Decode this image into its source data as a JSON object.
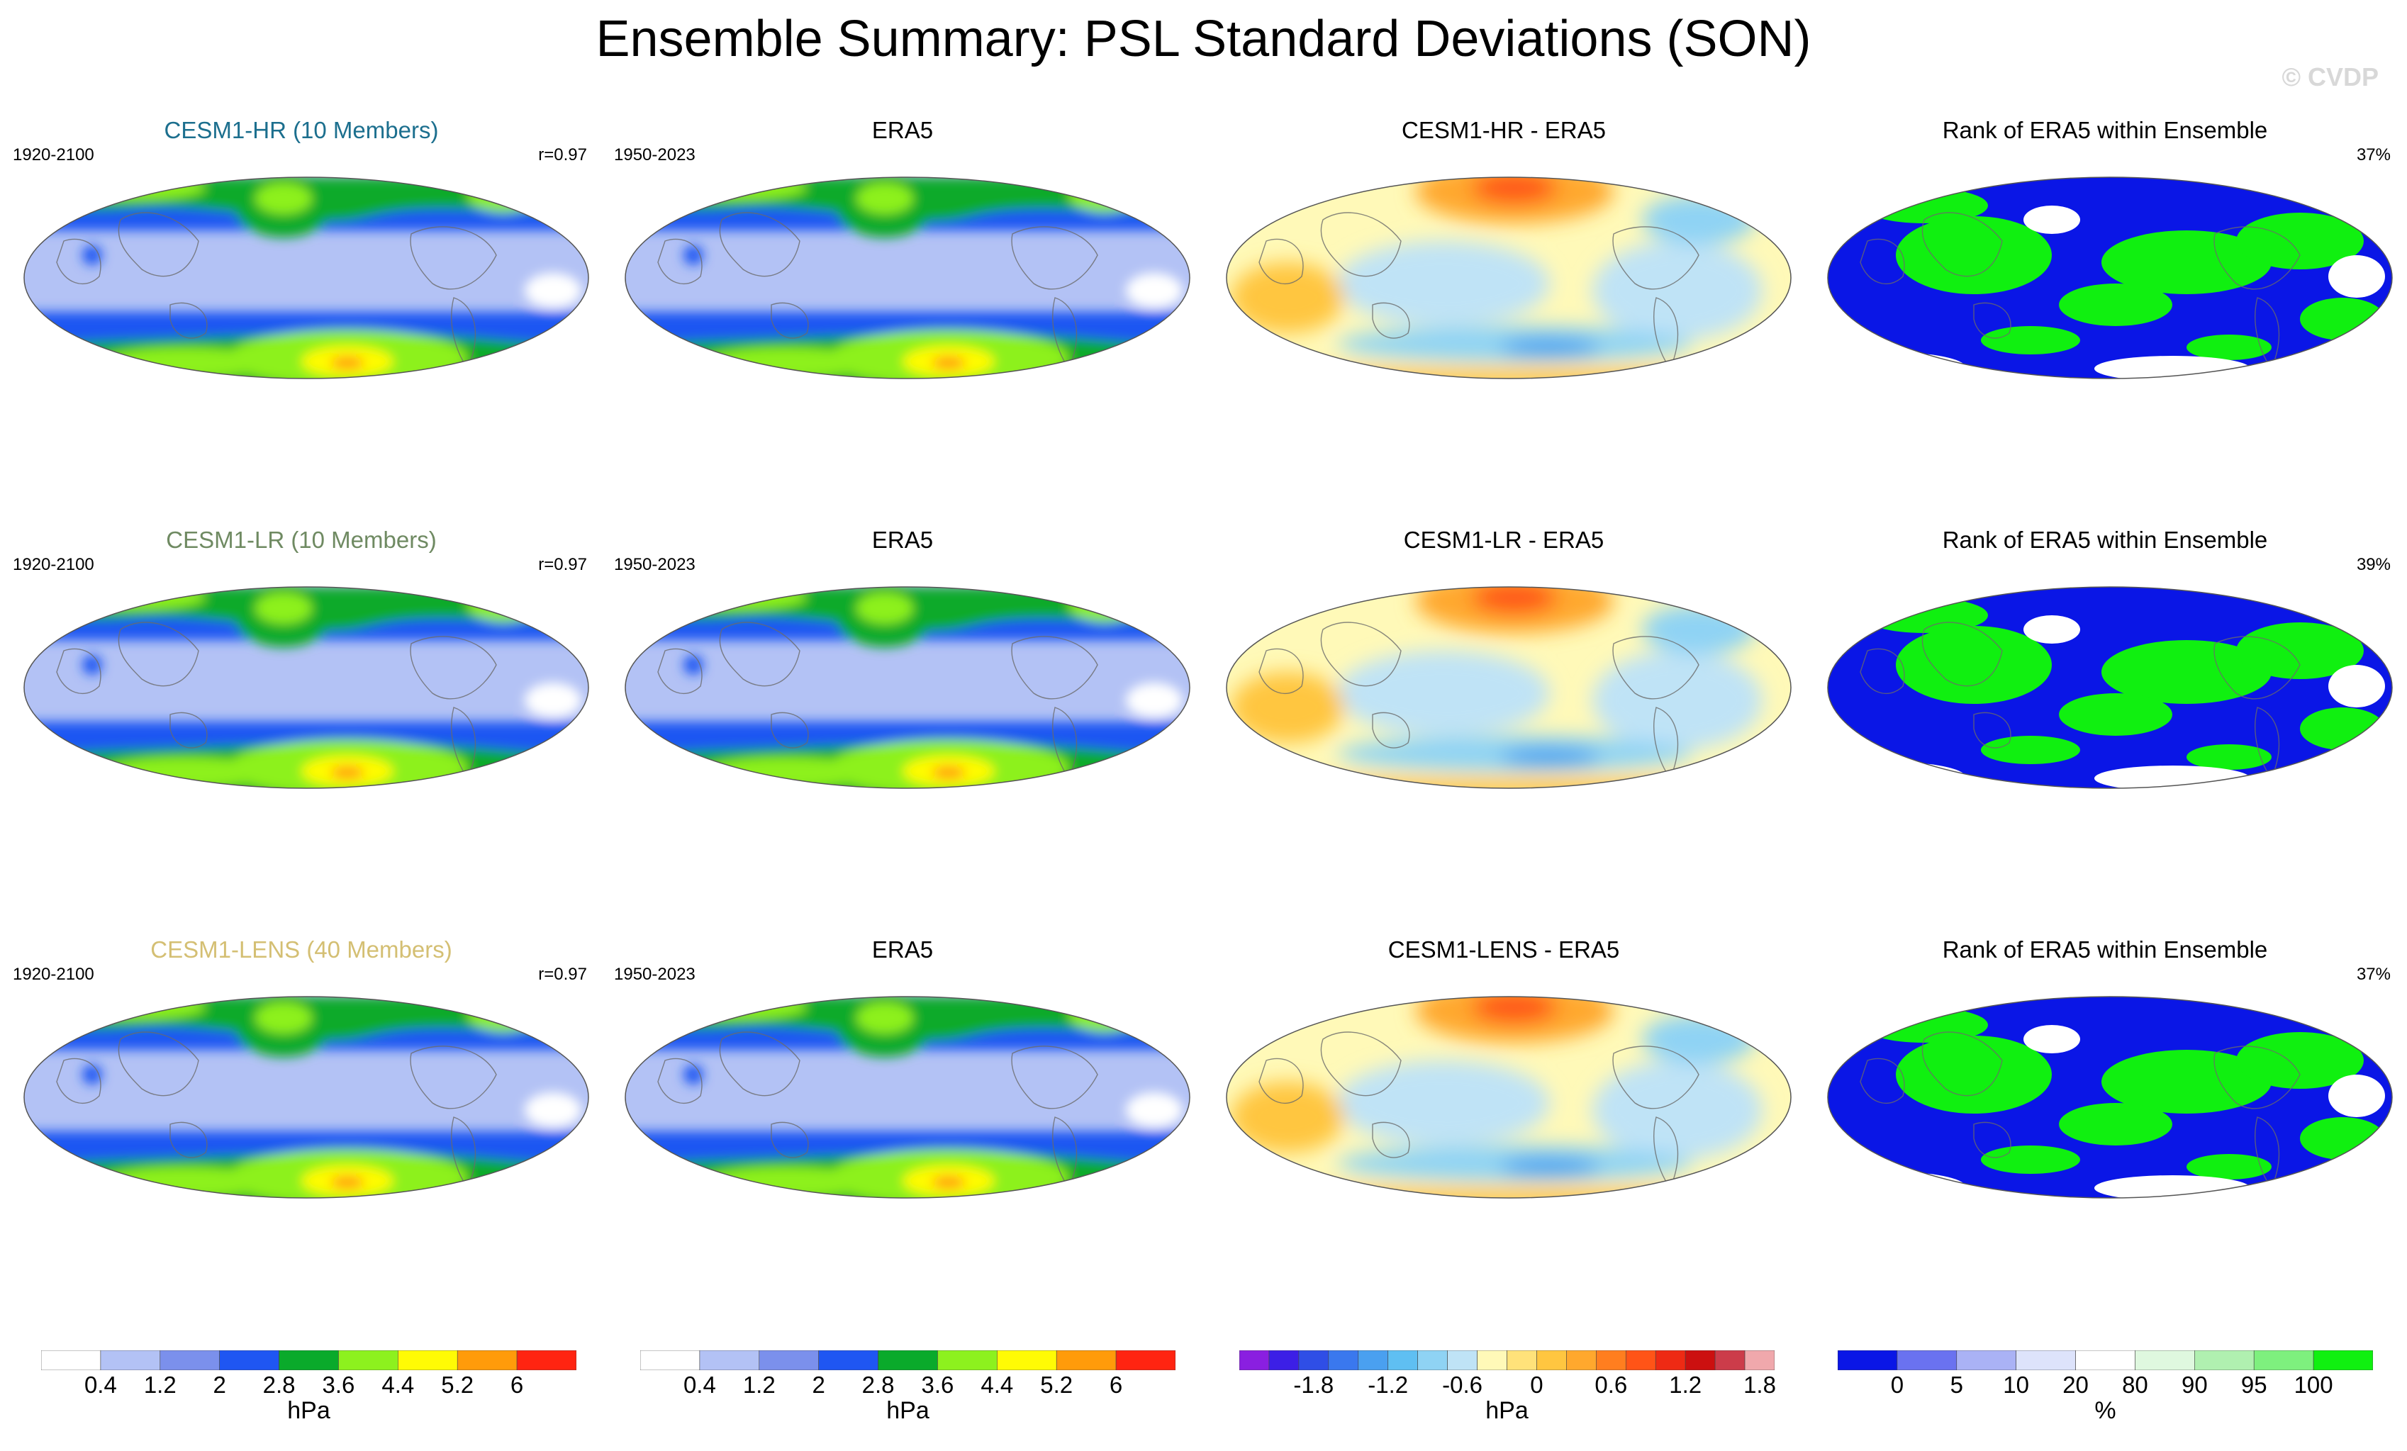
{
  "title": "Ensemble Summary: PSL Standard Deviations (SON)",
  "copyright": "© CVDP",
  "rows": [
    {
      "model_title": "CESM1-HR (10 Members)",
      "model_color": "#1c6f8e",
      "model_years": "1920-2100",
      "pattern_corr": "r=0.97",
      "obs_title": "ERA5",
      "obs_years": "1950-2023",
      "diff_title": "CESM1-HR - ERA5",
      "rank_title": "Rank of ERA5 within Ensemble",
      "rank_pct": "37%"
    },
    {
      "model_title": "CESM1-LR (10 Members)",
      "model_color": "#6f8a62",
      "model_years": "1920-2100",
      "pattern_corr": "r=0.97",
      "obs_title": "ERA5",
      "obs_years": "1950-2023",
      "diff_title": "CESM1-LR - ERA5",
      "rank_title": "Rank of ERA5 within Ensemble",
      "rank_pct": "39%"
    },
    {
      "model_title": "CESM1-LENS (40 Members)",
      "model_color": "#d4bf73",
      "model_years": "1920-2100",
      "pattern_corr": "r=0.97",
      "obs_title": "ERA5",
      "obs_years": "1950-2023",
      "diff_title": "CESM1-LENS - ERA5",
      "rank_title": "Rank of ERA5 within Ensemble",
      "rank_pct": "37%"
    }
  ],
  "colorbars": [
    {
      "unit": "hPa",
      "colors": [
        "#ffffff",
        "#b3c2f5",
        "#7b90ec",
        "#1f56f2",
        "#0aaa2b",
        "#8df11e",
        "#fffb05",
        "#ff9b0a",
        "#ff2411"
      ],
      "ticks": [
        "0.4",
        "1.2",
        "2",
        "2.8",
        "3.6",
        "4.4",
        "5.2",
        "6"
      ]
    },
    {
      "unit": "hPa",
      "colors": [
        "#ffffff",
        "#b3c2f5",
        "#7b90ec",
        "#1f56f2",
        "#0aaa2b",
        "#8df11e",
        "#fffb05",
        "#ff9b0a",
        "#ff2411"
      ],
      "ticks": [
        "0.4",
        "1.2",
        "2",
        "2.8",
        "3.6",
        "4.4",
        "5.2",
        "6"
      ]
    },
    {
      "unit": "hPa",
      "colors": [
        "#8a1fe0",
        "#3c1fe6",
        "#2f4ee6",
        "#3a78ee",
        "#4aa0f0",
        "#5fbff2",
        "#8fd3f4",
        "#bfe3f6",
        "#fff9b8",
        "#ffe27a",
        "#ffc640",
        "#ffa82d",
        "#ff7e1f",
        "#ff5417",
        "#ee2a14",
        "#cc1010",
        "#cc3c4a",
        "#f0a8ac"
      ],
      "ticks": [
        "-1.8",
        "-1.2",
        "-0.6",
        "0",
        "0.6",
        "1.2",
        "1.8"
      ]
    },
    {
      "unit": "%",
      "colors": [
        "#0a16e6",
        "#6a72f0",
        "#aab2f5",
        "#dde3fb",
        "#ffffff",
        "#dff8df",
        "#b0f0b0",
        "#7ef07e",
        "#10f010"
      ],
      "ticks": [
        "0",
        "5",
        "10",
        "20",
        "80",
        "90",
        "95",
        "100"
      ]
    }
  ],
  "chart_data": [
    {
      "type": "heatmap",
      "panel": "CESM1-HR (10 Members)",
      "variable": "PSL standard deviation (SON)",
      "units": "hPa",
      "contour_levels": [
        0.4,
        1.2,
        2,
        2.8,
        3.6,
        4.4,
        5.2,
        6
      ],
      "period": "1920-2100",
      "pattern_correlation": 0.97
    },
    {
      "type": "heatmap",
      "panel": "ERA5",
      "variable": "PSL standard deviation (SON)",
      "units": "hPa",
      "contour_levels": [
        0.4,
        1.2,
        2,
        2.8,
        3.6,
        4.4,
        5.2,
        6
      ],
      "period": "1950-2023"
    },
    {
      "type": "heatmap",
      "panel": "CESM1-HR - ERA5",
      "units": "hPa",
      "contour_levels": [
        -1.8,
        -1.2,
        -0.6,
        0,
        0.6,
        1.2,
        1.8
      ]
    },
    {
      "type": "heatmap",
      "panel": "Rank of ERA5 within Ensemble",
      "units": "%",
      "contour_levels": [
        0,
        5,
        10,
        20,
        80,
        90,
        95,
        100
      ],
      "summary": "37%"
    },
    {
      "type": "heatmap",
      "panel": "CESM1-LR (10 Members)",
      "units": "hPa",
      "period": "1920-2100",
      "pattern_correlation": 0.97
    },
    {
      "type": "heatmap",
      "panel": "CESM1-LR - ERA5",
      "units": "hPa"
    },
    {
      "type": "heatmap",
      "panel": "Rank of ERA5 within Ensemble",
      "units": "%",
      "summary": "39%"
    },
    {
      "type": "heatmap",
      "panel": "CESM1-LENS (40 Members)",
      "units": "hPa",
      "period": "1920-2100",
      "pattern_correlation": 0.97
    },
    {
      "type": "heatmap",
      "panel": "CESM1-LENS - ERA5",
      "units": "hPa"
    },
    {
      "type": "heatmap",
      "panel": "Rank of ERA5 within Ensemble",
      "units": "%",
      "summary": "37%"
    }
  ]
}
